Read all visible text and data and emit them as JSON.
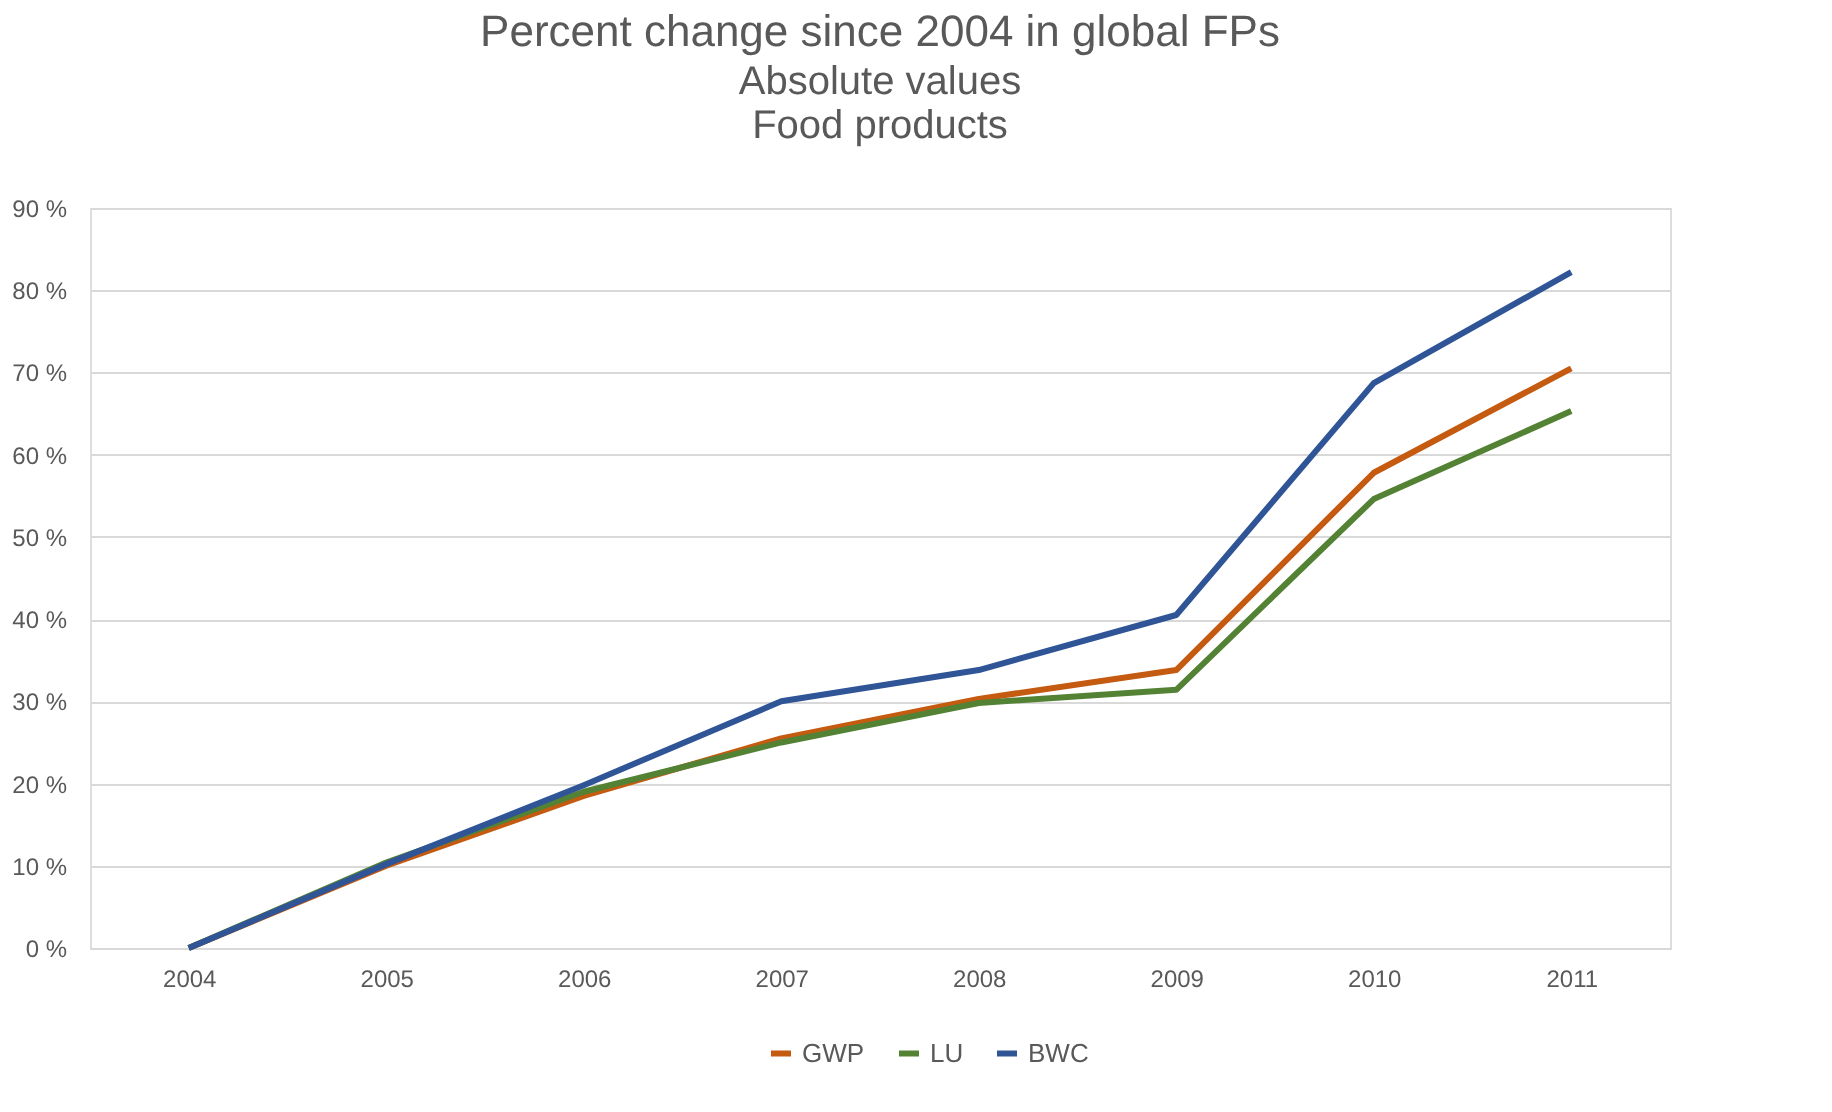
{
  "chart_data": {
    "type": "line",
    "title": "Percent change since 2004 in global FPs",
    "subtitle": [
      "Absolute values",
      "Food products"
    ],
    "categories": [
      "2004",
      "2005",
      "2006",
      "2007",
      "2008",
      "2009",
      "2010",
      "2011"
    ],
    "series": [
      {
        "name": "GWP",
        "color": "#c55a11",
        "values": [
          0,
          10.0,
          18.5,
          25.5,
          30.3,
          33.8,
          57.8,
          70.5
        ]
      },
      {
        "name": "LU",
        "color": "#548235",
        "values": [
          0,
          10.4,
          19.0,
          25.0,
          29.8,
          31.4,
          54.6,
          65.3
        ]
      },
      {
        "name": "BWC",
        "color": "#2f5597",
        "values": [
          0,
          10.2,
          19.8,
          30.0,
          33.8,
          40.5,
          68.7,
          82.2
        ]
      }
    ],
    "ylim": [
      0,
      90
    ],
    "yticks": [
      {
        "value": 0,
        "label": "0 %"
      },
      {
        "value": 10,
        "label": "10 %"
      },
      {
        "value": 20,
        "label": "20 %"
      },
      {
        "value": 30,
        "label": "30 %"
      },
      {
        "value": 40,
        "label": "40 %"
      },
      {
        "value": 50,
        "label": "50 %"
      },
      {
        "value": 60,
        "label": "60 %"
      },
      {
        "value": 70,
        "label": "70 %"
      },
      {
        "value": 80,
        "label": "80 %"
      },
      {
        "value": 90,
        "label": "90 %"
      }
    ],
    "grid": "y",
    "legend": "bottom",
    "marker": "none",
    "line_style": "solid"
  }
}
